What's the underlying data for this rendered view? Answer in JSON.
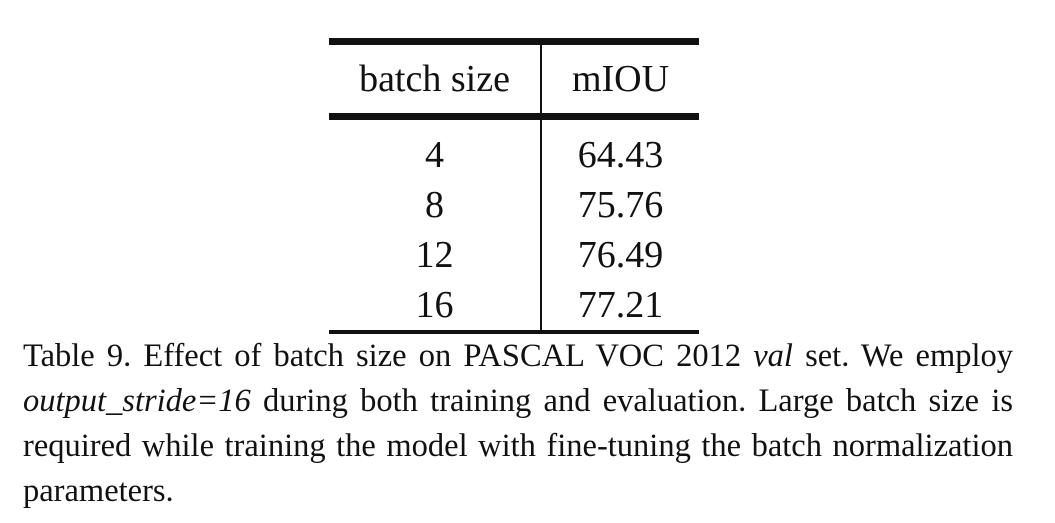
{
  "table": {
    "headers": [
      "batch size",
      "mIOU"
    ],
    "rows": [
      [
        "4",
        "64.43"
      ],
      [
        "8",
        "75.76"
      ],
      [
        "12",
        "76.49"
      ],
      [
        "16",
        "77.21"
      ]
    ]
  },
  "caption": {
    "part1": "Table 9. Effect of batch size on PASCAL VOC 2012 ",
    "val_italic": "val",
    "part2": " set. We employ ",
    "stride_italic": "output_stride=16",
    "part3": " during both training and evaluation. Large batch size is required while training the model with fine-tuning the batch normalization parameters."
  }
}
